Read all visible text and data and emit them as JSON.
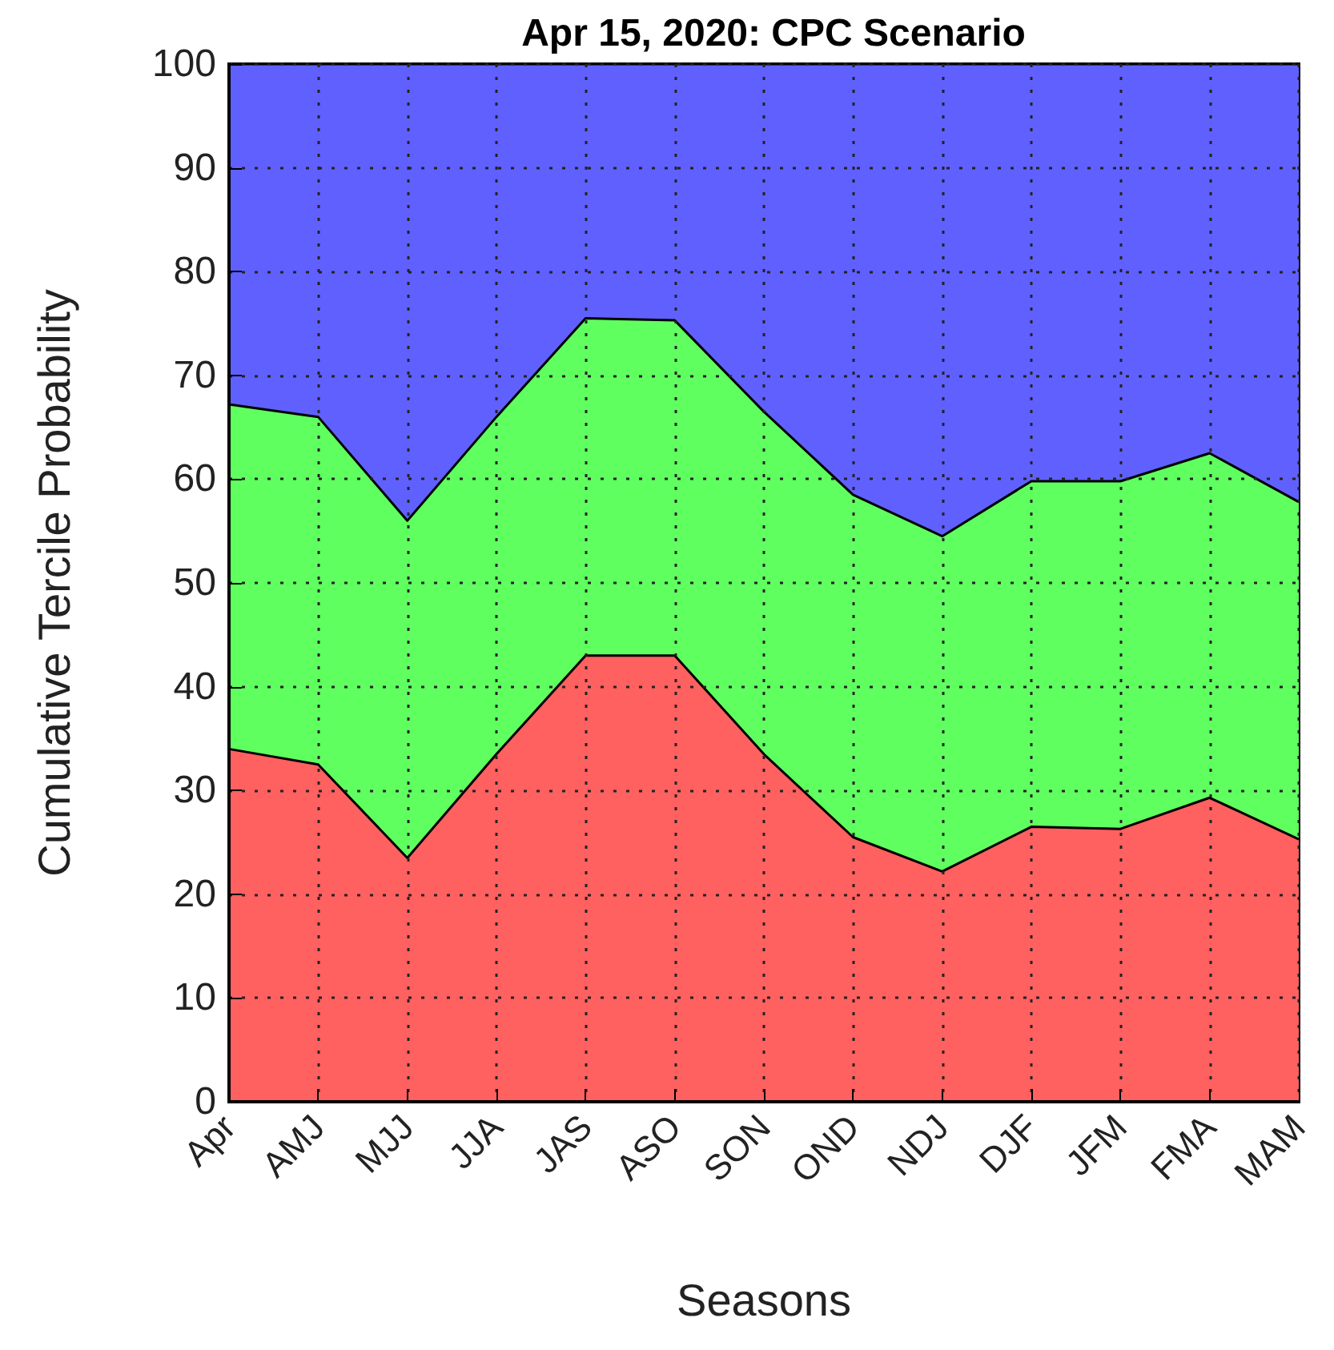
{
  "chart_data": {
    "type": "area",
    "title": "Apr 15, 2020: CPC Scenario",
    "xlabel": "Seasons",
    "ylabel": "Cumulative Tercile Probability",
    "categories": [
      "Apr",
      "AMJ",
      "MJJ",
      "JJA",
      "JAS",
      "ASO",
      "SON",
      "OND",
      "NDJ",
      "DJF",
      "JFM",
      "FMA",
      "MAM"
    ],
    "stacked": true,
    "series": [
      {
        "color": "#ff6060",
        "values": [
          34,
          32.5,
          23.5,
          33.5,
          43,
          43,
          33.5,
          25.5,
          22.2,
          26.5,
          26.3,
          29.3,
          25.3
        ]
      },
      {
        "color": "#60ff60",
        "values": [
          33.2,
          33.5,
          32.5,
          32.5,
          32.5,
          32.3,
          33,
          33,
          32.3,
          33.3,
          33.5,
          33.2,
          32.5
        ]
      },
      {
        "color": "#6060ff",
        "values": [
          32.8,
          34,
          44,
          34,
          24.5,
          24.7,
          33.5,
          41.5,
          45.5,
          40.2,
          40.2,
          37.5,
          42.2
        ]
      }
    ],
    "ylim": [
      0,
      100
    ],
    "yticks": [
      0,
      10,
      20,
      30,
      40,
      50,
      60,
      70,
      80,
      90,
      100
    ],
    "grid": true
  }
}
